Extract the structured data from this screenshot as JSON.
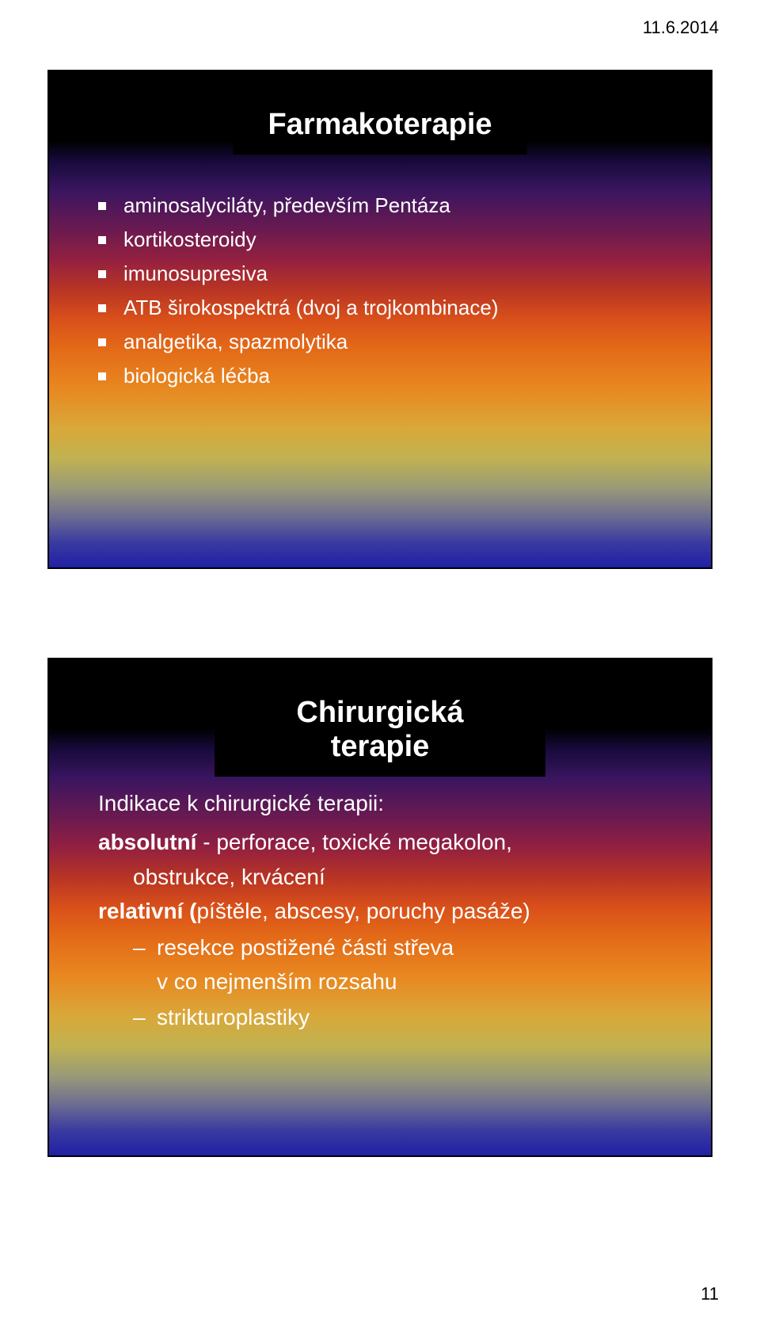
{
  "header": {
    "date": "11.6.2014",
    "page_number": "11"
  },
  "slide1": {
    "title": "Farmakoterapie",
    "bullets": [
      "aminosalyciláty, především Pentáza",
      "kortikosteroidy",
      "imunosupresiva",
      "ATB širokospektrá (dvoj a trojkombinace)",
      "analgetika, spazmolytika",
      "biologická léčba"
    ],
    "bullet_color": "#ffffff",
    "title_fontsize": 38,
    "body_fontsize": 26
  },
  "slide2": {
    "title": "Chirurgická terapie",
    "intro": "Indikace k chirurgické terapii:",
    "lines": [
      {
        "bold": "absolutní",
        "rest": " - perforace, toxické megakolon,"
      },
      {
        "indent": true,
        "text": "obstrukce, krvácení"
      },
      {
        "bold": "relativní (",
        "rest": "píštěle, abscesy, poruchy pasáže)"
      }
    ],
    "sub_bullets": [
      "resekce postižené části střeva\nv co nejmenším rozsahu",
      "strikturoplastiky"
    ],
    "title_fontsize": 38,
    "body_fontsize": 28
  },
  "style": {
    "background_gradient": [
      "#000000",
      "#160a3a",
      "#6b1a50",
      "#b83424",
      "#e36a18",
      "#d9a83a",
      "#6a6a92",
      "#2020a5"
    ],
    "text_color": "#ffffff",
    "title_block_bg": "#000000",
    "border_color": "#000000"
  }
}
